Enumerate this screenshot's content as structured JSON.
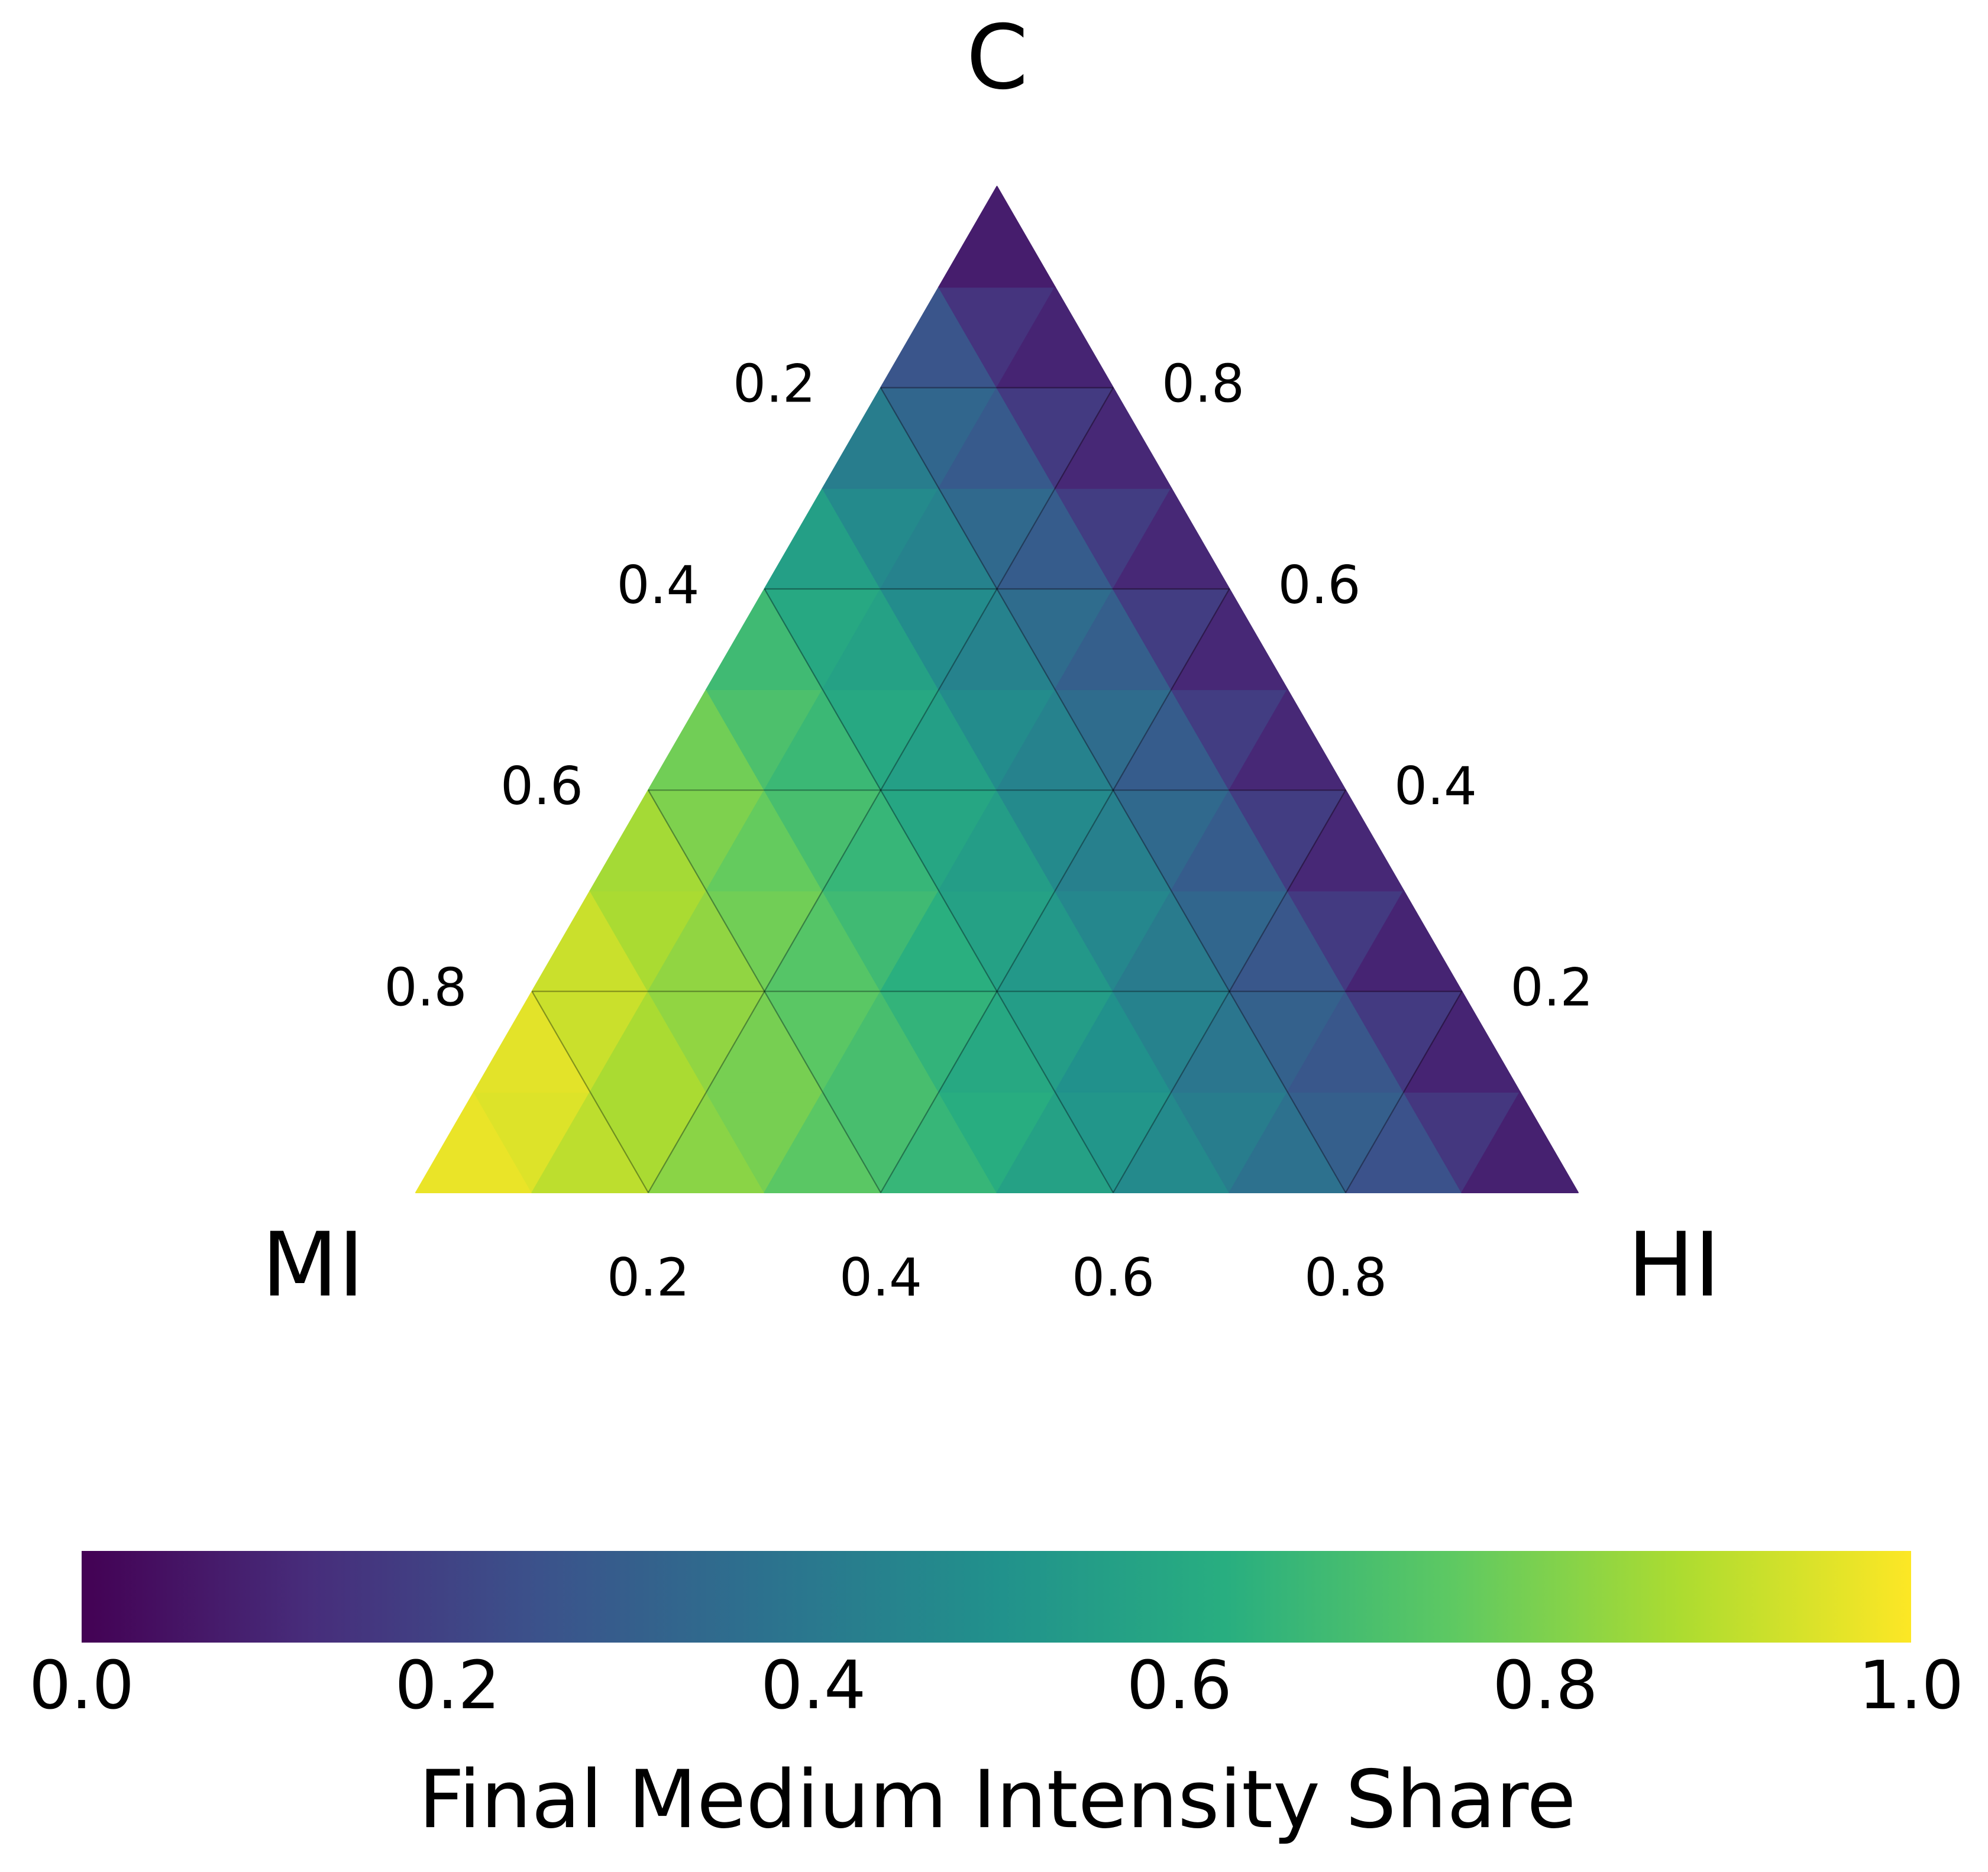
{
  "chart_data": {
    "type": "ternary-heatmap",
    "top_label": "C",
    "left_label": "MI",
    "right_label": "HI",
    "colormap": "viridis",
    "grid": true,
    "values": [
      [
        0.97,
        0.95,
        0.9,
        0.87,
        0.82,
        0.79,
        0.74,
        0.7,
        0.66,
        0.62,
        0.57,
        0.52,
        0.47,
        0.42,
        0.37,
        0.3,
        0.25,
        0.16,
        0.09
      ],
      [
        0.96,
        0.92,
        0.87,
        0.83,
        0.79,
        0.74,
        0.7,
        0.65,
        0.6,
        0.55,
        0.5,
        0.44,
        0.39,
        0.31,
        0.27,
        0.17,
        0.1
      ],
      [
        0.92,
        0.87,
        0.83,
        0.78,
        0.73,
        0.68,
        0.63,
        0.57,
        0.53,
        0.46,
        0.41,
        0.33,
        0.27,
        0.17,
        0.1
      ],
      [
        0.86,
        0.8,
        0.76,
        0.7,
        0.66,
        0.59,
        0.55,
        0.47,
        0.43,
        0.34,
        0.29,
        0.18,
        0.11
      ],
      [
        0.78,
        0.71,
        0.67,
        0.6,
        0.56,
        0.48,
        0.44,
        0.35,
        0.29,
        0.18,
        0.11
      ],
      [
        0.68,
        0.6,
        0.57,
        0.48,
        0.44,
        0.35,
        0.3,
        0.18,
        0.11
      ],
      [
        0.56,
        0.47,
        0.44,
        0.34,
        0.29,
        0.18,
        0.11
      ],
      [
        0.42,
        0.33,
        0.28,
        0.17,
        0.11
      ],
      [
        0.26,
        0.15,
        0.1
      ],
      [
        0.08
      ]
    ],
    "hi_ticks": [
      0.2,
      0.4,
      0.6,
      0.8
    ],
    "c_ticks": [
      0.2,
      0.4,
      0.6,
      0.8
    ],
    "mi_ticks": [
      0.2,
      0.4,
      0.6,
      0.8
    ],
    "colorbar_label": "Final Medium Intensity Share",
    "clim": [
      0,
      1
    ],
    "cticks": [
      {
        "value": 0,
        "label": "0.0"
      },
      {
        "value": 0.2,
        "label": "0.2"
      },
      {
        "value": 0.4,
        "label": "0.4"
      },
      {
        "value": 0.6,
        "label": "0.6"
      },
      {
        "value": 0.8,
        "label": "0.8"
      },
      {
        "value": 1,
        "label": "1.0"
      }
    ]
  }
}
